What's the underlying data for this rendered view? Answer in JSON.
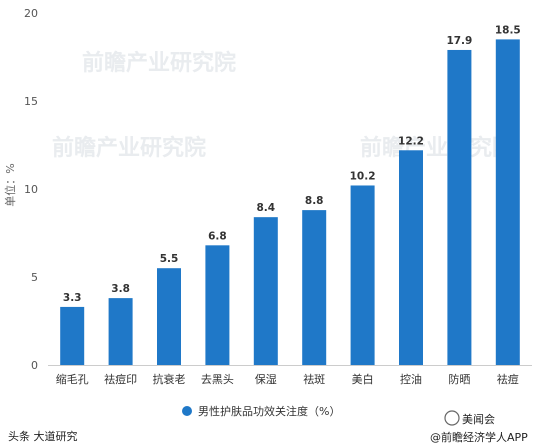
{
  "chart_data": {
    "type": "bar",
    "categories": [
      "缩毛孔",
      "祛痘印",
      "抗衰老",
      "去黑头",
      "保湿",
      "祛斑",
      "美白",
      "控油",
      "防晒",
      "祛痘"
    ],
    "series": [
      {
        "name": "男性护肤品功效关注度（%）",
        "values": [
          3.3,
          3.8,
          5.5,
          6.8,
          8.4,
          8.8,
          10.2,
          12.2,
          17.9,
          18.5
        ]
      }
    ],
    "ylabel": "单位：%",
    "ylim": [
      0,
      20
    ],
    "yticks": [
      0,
      5,
      10,
      15,
      20
    ],
    "grid": false,
    "legend": "bottom-center",
    "bar_color": "#1f78c8"
  },
  "watermarks": [
    "前瞻产业研究院",
    "前瞻产业研究院",
    "前瞻产业研究院"
  ],
  "footer": {
    "left": "头条 大道研究",
    "right_top": "美闻会",
    "right_bottom": "@前瞻经济学人APP"
  },
  "colors": {
    "axis": "#cccccc",
    "text": "#333333"
  }
}
